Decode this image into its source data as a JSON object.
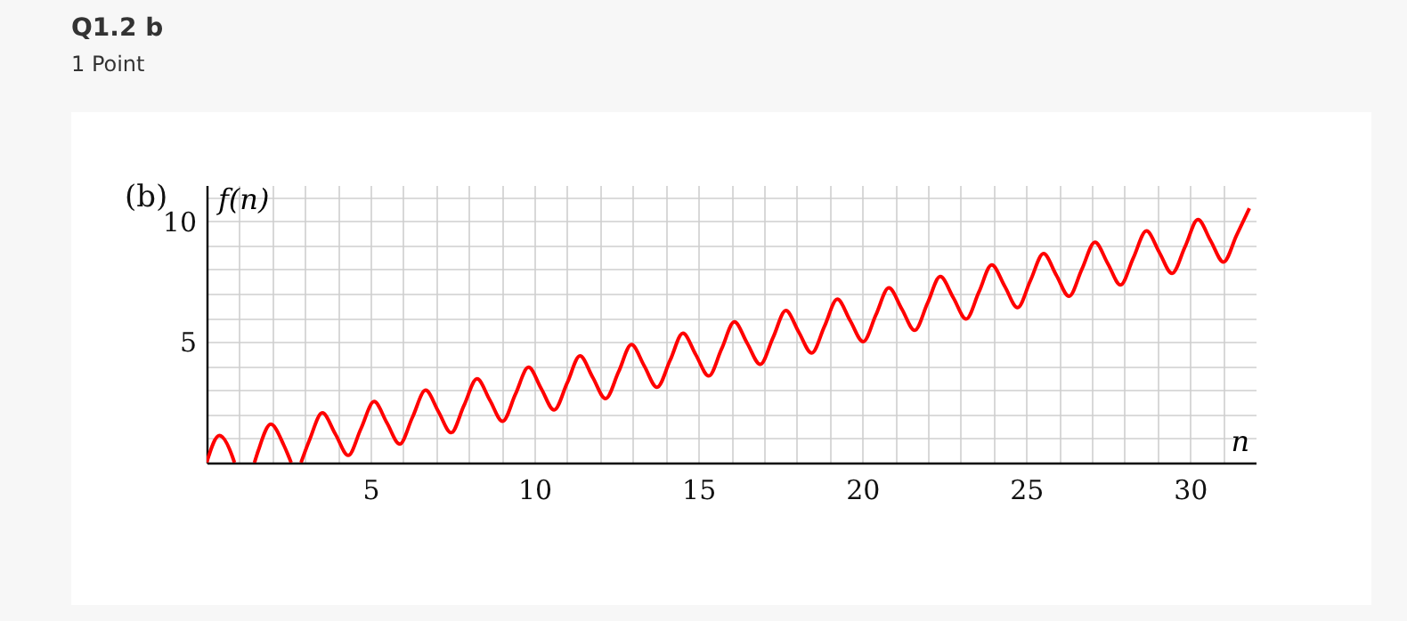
{
  "chart_data": {
    "type": "line",
    "title": "Q1.2 b",
    "subtitle": "1 Point",
    "xlabel": "n",
    "ylabel": "f(n)",
    "annotations": [
      "(b)"
    ],
    "x": [
      0,
      0.39,
      0.79,
      0.85,
      1.18,
      1.46,
      1.57,
      1.96,
      2.36,
      2.58,
      2.75,
      2.88,
      3.14,
      3.53,
      3.93,
      4.32,
      4.71,
      5.11,
      5.5,
      5.89,
      6.28,
      6.68,
      7.07,
      7.46,
      7.85,
      8.25,
      8.64,
      9.03,
      9.42,
      9.82,
      10.21,
      10.6,
      11,
      11.39,
      11.78,
      12.17,
      12.57,
      12.96,
      13.35,
      13.74,
      14.14,
      14.53,
      14.92,
      15.32,
      15.71,
      16.1,
      16.49,
      16.89,
      17.28,
      17.67,
      18.06,
      18.46,
      18.85,
      19.24,
      19.63,
      20.03,
      20.42,
      20.81,
      21.21,
      21.6,
      21.99,
      22.38,
      22.78,
      23.17,
      23.56,
      23.95,
      24.35,
      24.74,
      25.13,
      25.53,
      25.92,
      26.31,
      26.7,
      27.1,
      27.49,
      27.88,
      28.27,
      28.67,
      29.06,
      29.45,
      29.85,
      30.24,
      30.63,
      31.02,
      31.42,
      31.81
    ],
    "series": [
      {
        "color": "#ff0000",
        "values": [
          0,
          1.12,
          0.24,
          0,
          null,
          0,
          0.47,
          1.59,
          0.71,
          0,
          null,
          0,
          0.94,
          2.06,
          1.18,
          0.3,
          1.41,
          2.53,
          1.65,
          0.77,
          1.88,
          3,
          2.12,
          1.24,
          2.36,
          3.47,
          2.59,
          1.71,
          2.83,
          3.95,
          3.06,
          2.18,
          3.3,
          4.42,
          3.53,
          2.65,
          3.77,
          4.89,
          4.01,
          3.12,
          4.24,
          5.36,
          4.48,
          3.59,
          4.71,
          5.83,
          4.95,
          4.07,
          5.18,
          6.3,
          5.42,
          4.54,
          5.65,
          6.77,
          5.89,
          5.01,
          6.13,
          7.24,
          6.36,
          5.48,
          6.6,
          7.71,
          6.83,
          5.95,
          7.07,
          8.19,
          7.3,
          6.42,
          7.54,
          8.66,
          7.77,
          6.89,
          8.01,
          9.13,
          8.25,
          7.36,
          8.48,
          9.6,
          8.72,
          7.84,
          8.95,
          10.07,
          9.19,
          8.31,
          9.42,
          10.54
        ]
      }
    ],
    "xlim": [
      0,
      32
    ],
    "ylim": [
      0,
      11.5
    ],
    "xticks": [
      {
        "value": 1,
        "label": null
      },
      {
        "value": 2,
        "label": null
      },
      {
        "value": 3,
        "label": null
      },
      {
        "value": 4,
        "label": null
      },
      5,
      {
        "value": 6,
        "label": null
      },
      {
        "value": 7,
        "label": null
      },
      {
        "value": 8,
        "label": null
      },
      {
        "value": 9,
        "label": null
      },
      10,
      {
        "value": 11,
        "label": null
      },
      {
        "value": 12,
        "label": null
      },
      {
        "value": 13,
        "label": null
      },
      {
        "value": 14,
        "label": null
      },
      15,
      {
        "value": 16,
        "label": null
      },
      {
        "value": 17,
        "label": null
      },
      {
        "value": 18,
        "label": null
      },
      {
        "value": 19,
        "label": null
      },
      20,
      {
        "value": 21,
        "label": null
      },
      {
        "value": 22,
        "label": null
      },
      {
        "value": 23,
        "label": null
      },
      {
        "value": 24,
        "label": null
      },
      25,
      {
        "value": 26,
        "label": null
      },
      {
        "value": 27,
        "label": null
      },
      {
        "value": 28,
        "label": null
      },
      {
        "value": 29,
        "label": null
      },
      30,
      {
        "value": 31,
        "label": null
      }
    ],
    "yticks": [
      {
        "value": 1,
        "label": null
      },
      {
        "value": 2,
        "label": null
      },
      {
        "value": 3,
        "label": null
      },
      {
        "value": 4,
        "label": null
      },
      5,
      {
        "value": 6,
        "label": null
      },
      {
        "value": 7,
        "label": null
      },
      {
        "value": 8,
        "label": null
      },
      {
        "value": 9,
        "label": null
      },
      10,
      {
        "value": 11,
        "label": null
      }
    ],
    "grid": true
  }
}
